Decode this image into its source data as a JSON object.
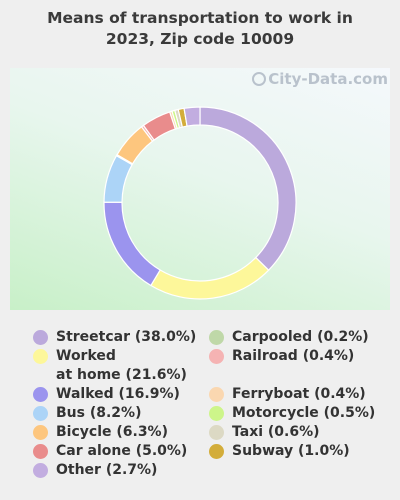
{
  "title_lines": [
    "Means of transportation to work in",
    "2023, Zip code 10009"
  ],
  "watermark": "City-Data.com",
  "chart_data": {
    "type": "pie",
    "donut": true,
    "title": "Means of transportation to work in 2023, Zip code 10009",
    "slices": [
      {
        "label": "Streetcar",
        "value": 38.0,
        "color": "#bba9dc"
      },
      {
        "label": "Worked at home",
        "value": 21.6,
        "color": "#fdf79a"
      },
      {
        "label": "Walked",
        "value": 16.9,
        "color": "#9b94ee"
      },
      {
        "label": "Bus",
        "value": 8.2,
        "color": "#acd4f7"
      },
      {
        "label": "Carpooled",
        "value": 0.2,
        "color": "#bfd8a8"
      },
      {
        "label": "Bicycle",
        "value": 6.3,
        "color": "#fdc67e"
      },
      {
        "label": "Railroad",
        "value": 0.4,
        "color": "#f5b3b3"
      },
      {
        "label": "Car alone",
        "value": 5.0,
        "color": "#e98c8c"
      },
      {
        "label": "Ferryboat",
        "value": 0.4,
        "color": "#fad7b0"
      },
      {
        "label": "Motorcycle",
        "value": 0.5,
        "color": "#cdf58a"
      },
      {
        "label": "Taxi",
        "value": 0.6,
        "color": "#dcd9c4"
      },
      {
        "label": "Subway",
        "value": 1.0,
        "color": "#d3ad3a"
      },
      {
        "label": "Other",
        "value": 2.7,
        "color": "#c2ade0"
      }
    ],
    "legend_placement": "bottom"
  },
  "legend": {
    "left": [
      {
        "lines": [
          "Streetcar (38.0%)"
        ],
        "color": "#bba9dc"
      },
      {
        "lines": [
          "Worked",
          "at home (21.6%)"
        ],
        "color": "#fdf79a"
      },
      {
        "lines": [
          "Walked (16.9%)"
        ],
        "color": "#9b94ee"
      },
      {
        "lines": [
          "Bus (8.2%)"
        ],
        "color": "#acd4f7"
      },
      {
        "lines": [
          "Bicycle (6.3%)"
        ],
        "color": "#fdc67e"
      },
      {
        "lines": [
          "Car alone (5.0%)"
        ],
        "color": "#e98c8c"
      },
      {
        "lines": [
          "Other (2.7%)"
        ],
        "color": "#c2ade0"
      }
    ],
    "right": [
      {
        "lines": [
          "Carpooled (0.2%)"
        ],
        "color": "#bfd8a8"
      },
      {
        "lines": [
          "Railroad (0.4%)"
        ],
        "color": "#f5b3b3"
      },
      {
        "lines": [
          ""
        ],
        "color": ""
      },
      {
        "lines": [
          "Ferryboat (0.4%)"
        ],
        "color": "#fad7b0"
      },
      {
        "lines": [
          "Motorcycle (0.5%)"
        ],
        "color": "#cdf58a"
      },
      {
        "lines": [
          "Taxi (0.6%)"
        ],
        "color": "#dcd9c4"
      },
      {
        "lines": [
          "Subway (1.0%)"
        ],
        "color": "#d3ad3a"
      }
    ]
  }
}
